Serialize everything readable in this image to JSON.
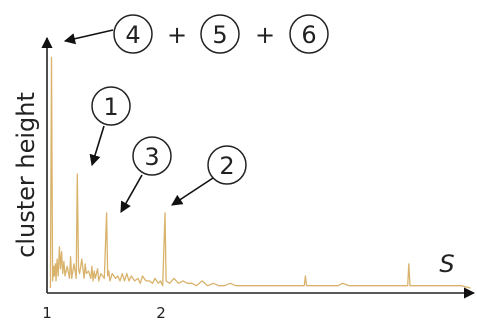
{
  "chart_data": {
    "type": "line",
    "title": "",
    "xlabel": "S",
    "ylabel": "cluster height",
    "x_ticks": [
      "1",
      "2"
    ],
    "grid": false,
    "legend": "none",
    "series_color": "#d9b36c",
    "series": [
      {
        "values": [
          [
            1.0,
            0.02
          ],
          [
            1.01,
            0.97
          ],
          [
            1.02,
            0.05
          ],
          [
            1.03,
            0.11
          ],
          [
            1.035,
            0.07
          ],
          [
            1.045,
            0.12
          ],
          [
            1.05,
            0.05
          ],
          [
            1.06,
            0.14
          ],
          [
            1.07,
            0.07
          ],
          [
            1.08,
            0.19
          ],
          [
            1.09,
            0.1
          ],
          [
            1.1,
            0.17
          ],
          [
            1.11,
            0.08
          ],
          [
            1.12,
            0.13
          ],
          [
            1.13,
            0.07
          ],
          [
            1.15,
            0.11
          ],
          [
            1.17,
            0.06
          ],
          [
            1.18,
            0.15
          ],
          [
            1.19,
            0.06
          ],
          [
            1.21,
            0.12
          ],
          [
            1.23,
            0.06
          ],
          [
            1.24,
            0.49
          ],
          [
            1.25,
            0.1
          ],
          [
            1.26,
            0.08
          ],
          [
            1.28,
            0.14
          ],
          [
            1.3,
            0.06
          ],
          [
            1.31,
            0.12
          ],
          [
            1.32,
            0.08
          ],
          [
            1.34,
            0.09
          ],
          [
            1.36,
            0.06
          ],
          [
            1.37,
            0.11
          ],
          [
            1.38,
            0.05
          ],
          [
            1.39,
            0.09
          ],
          [
            1.4,
            0.06
          ],
          [
            1.42,
            0.1
          ],
          [
            1.43,
            0.05
          ],
          [
            1.45,
            0.08
          ],
          [
            1.48,
            0.06
          ],
          [
            1.5,
            0.33
          ],
          [
            1.51,
            0.07
          ],
          [
            1.52,
            0.09
          ],
          [
            1.53,
            0.05
          ],
          [
            1.55,
            0.08
          ],
          [
            1.58,
            0.06
          ],
          [
            1.6,
            0.07
          ],
          [
            1.62,
            0.05
          ],
          [
            1.64,
            0.08
          ],
          [
            1.66,
            0.05
          ],
          [
            1.68,
            0.08
          ],
          [
            1.7,
            0.05
          ],
          [
            1.72,
            0.07
          ],
          [
            1.75,
            0.05
          ],
          [
            1.78,
            0.06
          ],
          [
            1.8,
            0.04
          ],
          [
            1.82,
            0.07
          ],
          [
            1.85,
            0.05
          ],
          [
            1.88,
            0.05
          ],
          [
            1.91,
            0.04
          ],
          [
            1.93,
            0.06
          ],
          [
            1.96,
            0.04
          ],
          [
            1.98,
            0.05
          ],
          [
            2.0,
            0.03
          ],
          [
            2.02,
            0.33
          ],
          [
            2.03,
            0.05
          ],
          [
            2.06,
            0.04
          ],
          [
            2.1,
            0.06
          ],
          [
            2.14,
            0.04
          ],
          [
            2.18,
            0.05
          ],
          [
            2.22,
            0.04
          ],
          [
            2.26,
            0.04
          ],
          [
            2.3,
            0.03
          ],
          [
            2.35,
            0.05
          ],
          [
            2.4,
            0.03
          ],
          [
            2.45,
            0.04
          ],
          [
            2.5,
            0.03
          ],
          [
            2.55,
            0.03
          ],
          [
            2.6,
            0.04
          ],
          [
            2.65,
            0.03
          ],
          [
            2.7,
            0.03
          ],
          [
            2.75,
            0.03
          ],
          [
            2.8,
            0.03
          ],
          [
            2.85,
            0.03
          ],
          [
            2.9,
            0.03
          ],
          [
            2.95,
            0.03
          ],
          [
            3.0,
            0.03
          ],
          [
            3.05,
            0.03
          ],
          [
            3.1,
            0.03
          ],
          [
            3.15,
            0.03
          ],
          [
            3.2,
            0.03
          ],
          [
            3.26,
            0.03
          ],
          [
            3.27,
            0.07
          ],
          [
            3.28,
            0.03
          ],
          [
            3.32,
            0.03
          ],
          [
            3.38,
            0.03
          ],
          [
            3.44,
            0.03
          ],
          [
            3.5,
            0.03
          ],
          [
            3.56,
            0.03
          ],
          [
            3.6,
            0.04
          ],
          [
            3.66,
            0.03
          ],
          [
            3.72,
            0.03
          ],
          [
            3.8,
            0.03
          ],
          [
            3.88,
            0.03
          ],
          [
            3.96,
            0.03
          ],
          [
            4.04,
            0.03
          ],
          [
            4.12,
            0.03
          ],
          [
            4.18,
            0.03
          ],
          [
            4.19,
            0.12
          ],
          [
            4.2,
            0.03
          ],
          [
            4.26,
            0.03
          ],
          [
            4.34,
            0.03
          ],
          [
            4.42,
            0.03
          ],
          [
            4.5,
            0.03
          ],
          [
            4.58,
            0.03
          ],
          [
            4.66,
            0.03
          ],
          [
            4.74,
            0.02
          ]
        ]
      }
    ],
    "xlim": [
      0.97,
      4.77
    ],
    "ylim": [
      0,
      1.05
    ],
    "annotations": [
      {
        "labels": [
          "4",
          "5",
          "6"
        ],
        "separator": "+",
        "points_to": [
          1.01,
          0.97
        ]
      },
      {
        "labels": [
          "1"
        ],
        "points_to": [
          1.24,
          0.49
        ]
      },
      {
        "labels": [
          "3"
        ],
        "points_to": [
          1.5,
          0.33
        ]
      },
      {
        "labels": [
          "2"
        ],
        "points_to": [
          2.02,
          0.33
        ]
      }
    ]
  }
}
